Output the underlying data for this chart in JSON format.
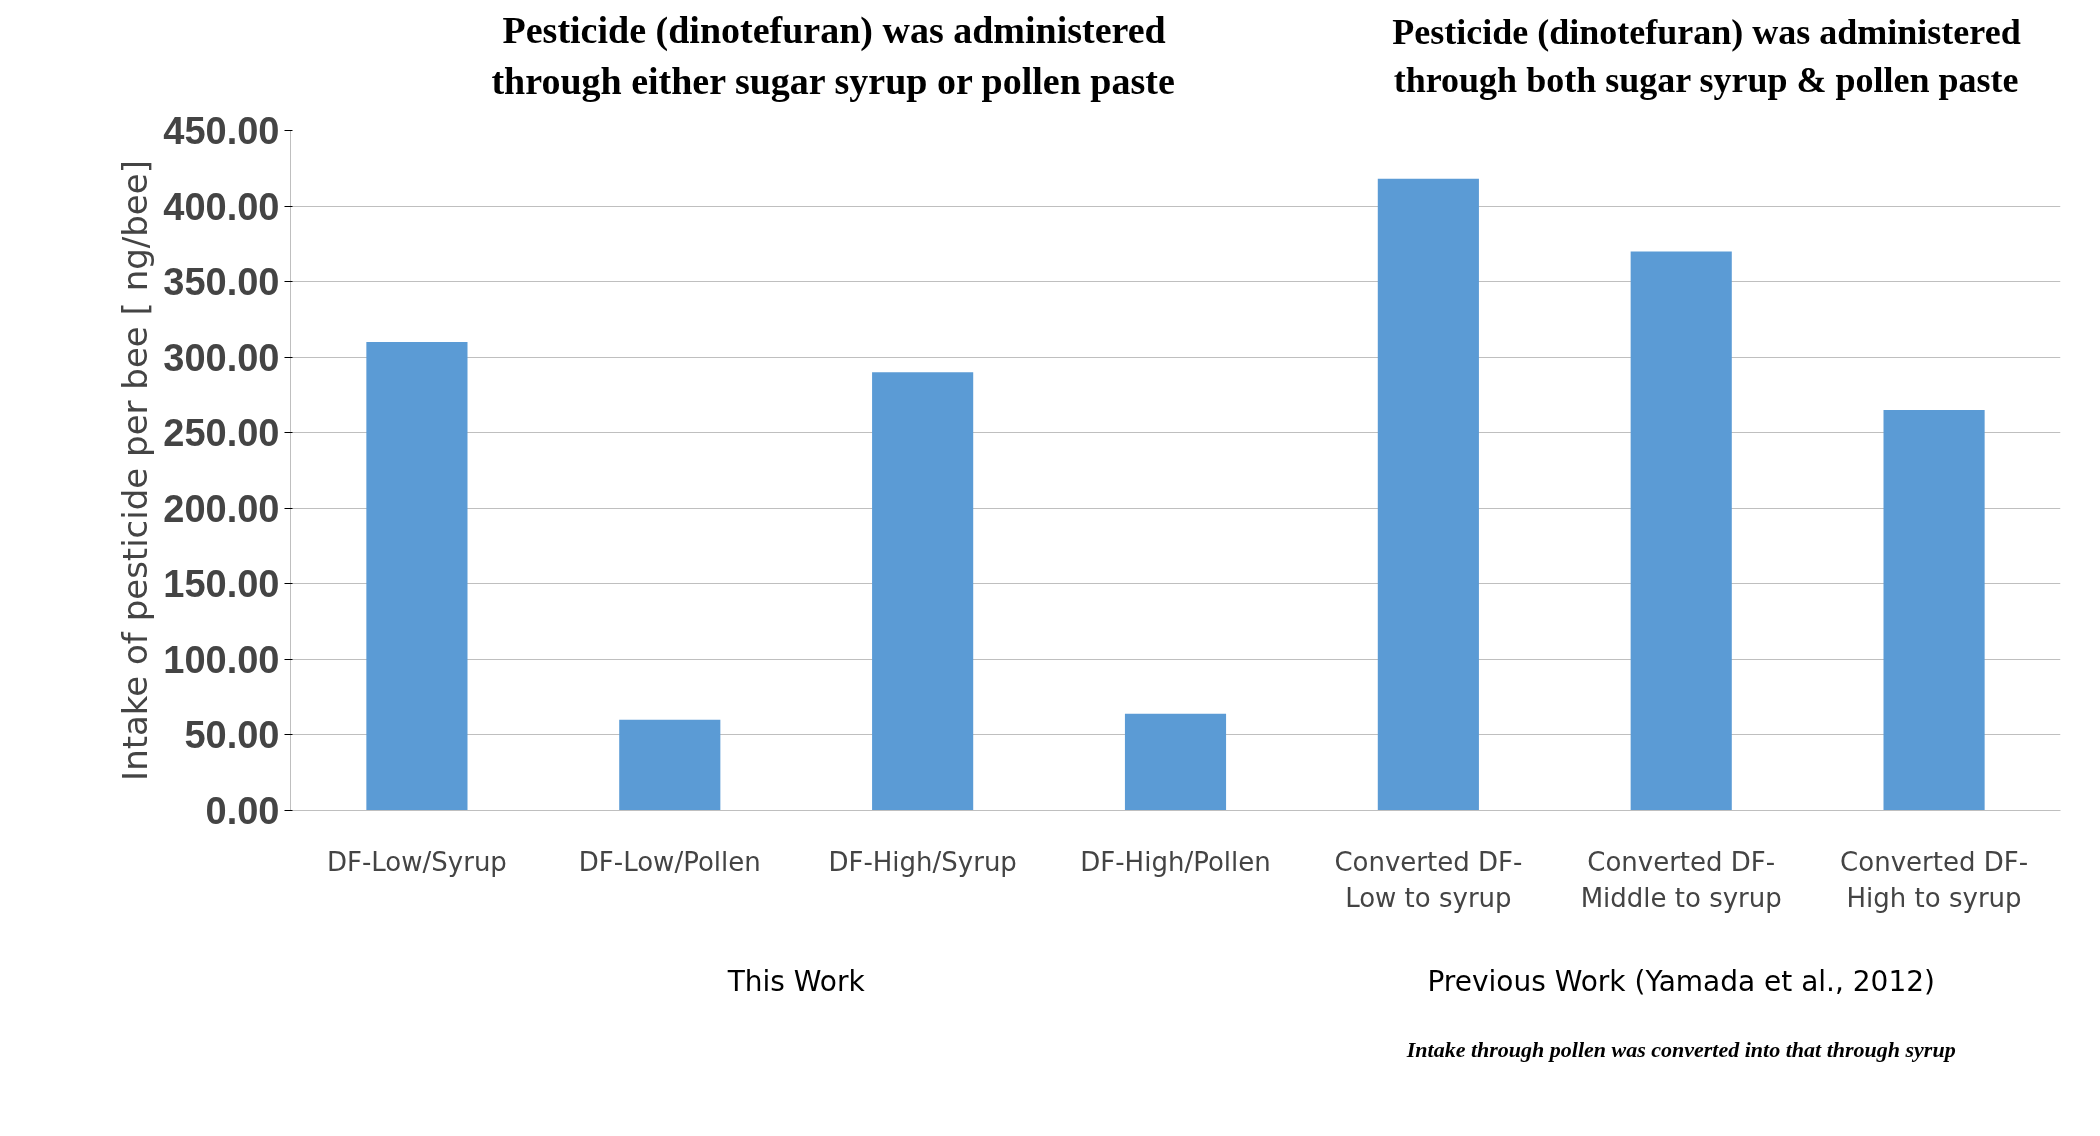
{
  "chart_data": {
    "type": "bar",
    "ylabel": "Intake of pesticide per bee [ ng/bee]",
    "categories": [
      "DF-Low/Syrup",
      "DF-Low/Pollen",
      "DF-High/Syrup",
      "DF-High/Pollen",
      "Converted DF-\nLow to syrup",
      "Converted DF-\nMiddle to syrup",
      "Converted DF-\nHigh to syrup"
    ],
    "values": [
      310,
      60,
      290,
      64,
      418,
      370,
      265
    ],
    "color": "#5b9bd5",
    "ylim": [
      0,
      450
    ],
    "yticks": [
      {
        "value": 0,
        "label": "0.00"
      },
      {
        "value": 50,
        "label": "50.00"
      },
      {
        "value": 100,
        "label": "100.00"
      },
      {
        "value": 150,
        "label": "150.00"
      },
      {
        "value": 200,
        "label": "200.00"
      },
      {
        "value": 250,
        "label": "250.00"
      },
      {
        "value": 300,
        "label": "300.00"
      },
      {
        "value": 350,
        "label": "350.00"
      },
      {
        "value": 400,
        "label": "400.00"
      },
      {
        "value": 450,
        "label": "450.00"
      }
    ],
    "grid": "y",
    "annotations": [
      "Pesticide (dinotefuran) was administered\nthrough either sugar syrup or pollen paste",
      "Pesticide (dinotefuran) was administered\nthrough both sugar syrup & pollen paste",
      "This Work",
      "Previous Work (Yamada et al., 2012)",
      "Intake through pollen was converted into that through syrup"
    ]
  }
}
